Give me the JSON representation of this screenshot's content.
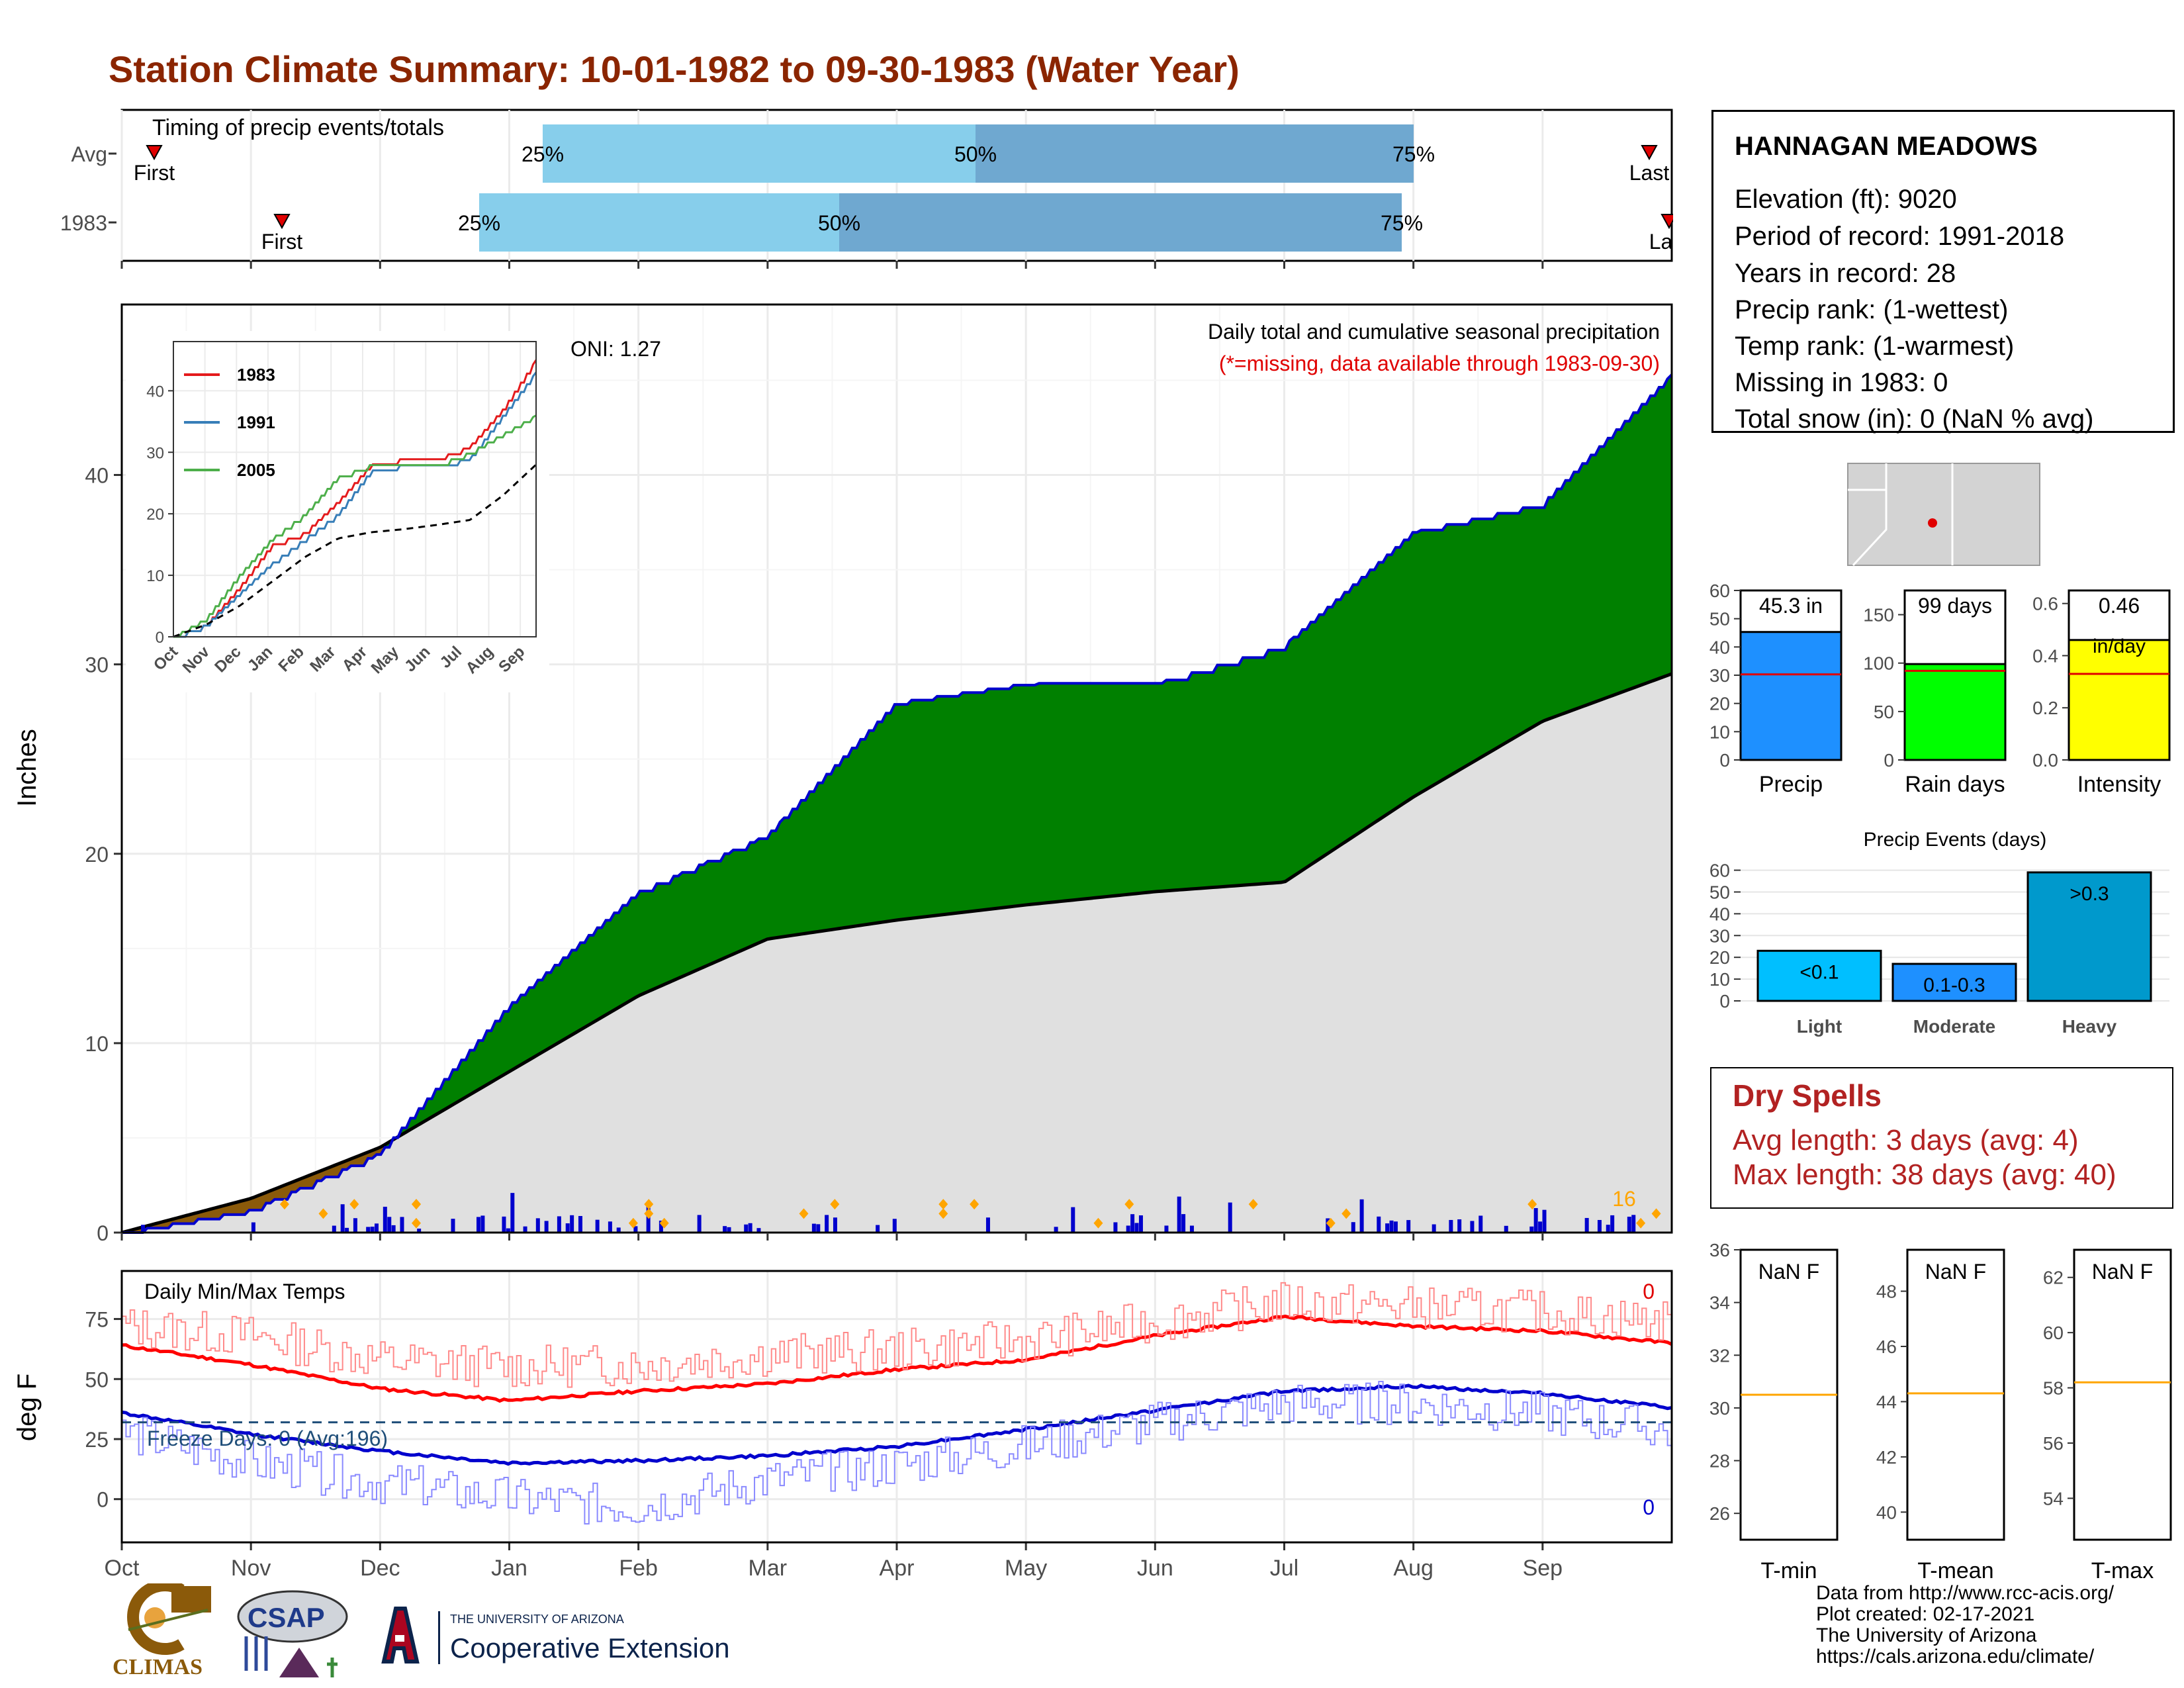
{
  "title": "Station Climate Summary: 10-01-1982 to 09-30-1983 (Water Year)",
  "timing_panel": {
    "label": "Timing of precip events/totals",
    "rows": [
      {
        "name": "Avg",
        "first_label": "First",
        "last_label": "Last",
        "p25": "25%",
        "p50": "50%",
        "p75": "75%"
      },
      {
        "name": "1983",
        "first_label": "First",
        "last_label": "Last",
        "p25": "25%",
        "p50": "50%",
        "p75": "75%"
      }
    ]
  },
  "station": {
    "name": "HANNAGAN MEADOWS",
    "lines": [
      "Elevation (ft): 9020",
      "Period of record: 1991-2018",
      "Years in record: 28",
      "Precip rank:  (1-wettest)",
      "Temp rank:  (1-warmest)",
      "Missing in 1983: 0",
      "Total snow (in): 0 (NaN % avg)"
    ]
  },
  "main_plot": {
    "ylabel": "Inches",
    "note1": "Daily total and cumulative seasonal precipitation",
    "note2": "(*=missing, data available through 1983-09-30)",
    "oni": "ONI: 1.27",
    "count_label": "16",
    "months": [
      "Oct",
      "Nov",
      "Dec",
      "Jan",
      "Feb",
      "Mar",
      "Apr",
      "May",
      "Jun",
      "Jul",
      "Aug",
      "Sep"
    ],
    "yticks": [
      "0",
      "10",
      "20",
      "30",
      "40"
    ]
  },
  "chart_data": [
    {
      "type": "area",
      "title": "Daily total and cumulative seasonal precipitation",
      "ylabel": "Inches",
      "ylim": [
        0,
        49
      ],
      "x": [
        "Oct",
        "Nov",
        "Dec",
        "Jan",
        "Feb",
        "Mar",
        "Apr",
        "May",
        "Jun",
        "Jul",
        "Aug",
        "Sep",
        "Sep 30"
      ],
      "series": [
        {
          "name": "1983",
          "values": [
            0,
            1.2,
            4.2,
            12.0,
            18.0,
            21.0,
            28.0,
            29.0,
            29.0,
            31.0,
            37.0,
            38.5,
            45.3
          ]
        },
        {
          "name": "Avg",
          "values": [
            0,
            1.8,
            4.5,
            8.5,
            12.5,
            15.5,
            16.5,
            17.3,
            18.0,
            18.5,
            23.0,
            27.0,
            29.5
          ]
        }
      ]
    },
    {
      "type": "line",
      "title": "",
      "ylim": [
        0,
        48
      ],
      "x": [
        "Oct",
        "Nov",
        "Dec",
        "Jan",
        "Feb",
        "Mar",
        "Apr",
        "May",
        "Jun",
        "Jul",
        "Aug",
        "Sep"
      ],
      "series": [
        {
          "name": "1983",
          "values": [
            0,
            2,
            8,
            15,
            17,
            22,
            28,
            29,
            29,
            31,
            37,
            45
          ]
        },
        {
          "name": "1991",
          "values": [
            0,
            2,
            7,
            12,
            16,
            20,
            27,
            28,
            28,
            29,
            36,
            43
          ]
        },
        {
          "name": "2005",
          "values": [
            0,
            3,
            10,
            16,
            20,
            26,
            28,
            28,
            28,
            30,
            33,
            36
          ]
        },
        {
          "name": "Avg",
          "values": [
            0,
            2,
            5,
            9,
            13,
            16,
            17,
            17.5,
            18.2,
            19,
            23,
            28
          ]
        }
      ]
    },
    {
      "type": "bar",
      "title": "",
      "categories": [
        "Precip",
        "Rain days",
        "Intensity"
      ],
      "values": [
        45.3,
        99,
        0.46
      ],
      "labels": [
        "45.3 in",
        "99 days",
        "0.46 in/day"
      ],
      "averages": [
        30.3,
        92,
        0.33
      ],
      "ylims": [
        [
          0,
          60
        ],
        [
          0,
          175
        ],
        [
          0,
          0.65
        ]
      ]
    },
    {
      "type": "bar",
      "title": "Precip Events (days)",
      "categories": [
        "Light",
        "Moderate",
        "Heavy"
      ],
      "values": [
        23,
        17,
        59
      ],
      "labels": [
        "<0.1",
        "0.1-0.3",
        ">0.3"
      ],
      "ylim": [
        0,
        62
      ]
    },
    {
      "type": "line",
      "title": "Daily Min/Max Temps",
      "ylabel": "deg F",
      "ylim": [
        -18,
        95
      ],
      "x": [
        "Oct",
        "Nov",
        "Dec",
        "Jan",
        "Feb",
        "Mar",
        "Apr",
        "May",
        "Jun",
        "Jul",
        "Aug",
        "Sep",
        "Sep 30"
      ],
      "series": [
        {
          "name": "Avg Max",
          "values": [
            64,
            56,
            46,
            41,
            45,
            48,
            54,
            58,
            68,
            76,
            72,
            70,
            65
          ]
        },
        {
          "name": "Avg Min",
          "values": [
            36,
            27,
            20,
            15,
            16,
            18,
            22,
            29,
            37,
            45,
            47,
            44,
            38
          ]
        },
        {
          "name": "Daily Max",
          "values": [
            72,
            68,
            58,
            55,
            56,
            60,
            62,
            66,
            74,
            82,
            80,
            78,
            74
          ]
        },
        {
          "name": "Daily Min",
          "values": [
            28,
            15,
            7,
            0,
            -3,
            8,
            14,
            22,
            32,
            40,
            40,
            36,
            28
          ]
        }
      ]
    }
  ],
  "temp_panel": {
    "label": "Daily Min/Max Temps",
    "ylabel": "deg F",
    "freeze": "Freeze Days: 0 (Avg:196)",
    "max_count": "0",
    "min_count": "0",
    "yticks": [
      "0",
      "25",
      "50",
      "75"
    ]
  },
  "summary_bars": [
    {
      "axis_label": "Precip",
      "value_label": "45.3 in",
      "color": "#1E90FF",
      "yticks": [
        "0",
        "10",
        "20",
        "30",
        "40",
        "50",
        "60"
      ]
    },
    {
      "axis_label": "Rain days",
      "value_label": "99 days",
      "color": "#00FF00",
      "yticks": [
        "0",
        "50",
        "100",
        "150"
      ]
    },
    {
      "axis_label": "Intensity",
      "value_label": "0.46",
      "unit_label": "in/day",
      "color": "#FFFF00",
      "yticks": [
        "0.0",
        "0.2",
        "0.4",
        "0.6"
      ]
    }
  ],
  "events": {
    "title": "Precip Events (days)",
    "yticks": [
      "0",
      "10",
      "20",
      "30",
      "40",
      "50",
      "60"
    ],
    "bars": [
      {
        "category": "Light",
        "label": "<0.1"
      },
      {
        "category": "Moderate",
        "label": "0.1-0.3"
      },
      {
        "category": "Heavy",
        "label": ">0.3"
      }
    ]
  },
  "dry_spells": {
    "title": "Dry Spells",
    "avg": "Avg length: 3 days (avg: 4)",
    "max": "Max length: 38 days (avg: 40)"
  },
  "temp_boxes": [
    {
      "axis_label": "T-min",
      "value": "NaN F",
      "yticks": [
        "26",
        "28",
        "30",
        "32",
        "34",
        "36"
      ]
    },
    {
      "axis_label": "T-mean",
      "value": "NaN F",
      "yticks": [
        "40",
        "42",
        "44",
        "46",
        "48"
      ]
    },
    {
      "axis_label": "T-max",
      "value": "NaN F",
      "yticks": [
        "54",
        "56",
        "58",
        "60",
        "62"
      ]
    }
  ],
  "inset_months": [
    "Oct",
    "Nov",
    "Dec",
    "Jan",
    "Feb",
    "Mar",
    "Apr",
    "May",
    "Jun",
    "Jul",
    "Aug",
    "Sep"
  ],
  "inset_yticks": [
    "0",
    "10",
    "20",
    "30",
    "40"
  ],
  "footer": [
    "Data from http://www.rcc-acis.org/",
    "Plot created: 02-17-2021",
    "The University of Arizona",
    "https://cals.arizona.edu/climate/"
  ],
  "logos": {
    "climas": "CLIMAS",
    "csap": "CSAP",
    "ua_small": "THE UNIVERSITY OF ARIZONA",
    "ua_big": "Cooperative Extension"
  },
  "colors": {
    "title": "#8B2500",
    "precip_above": "#008000",
    "precip_below": "#8B5A0A",
    "avg_fill": "#E0E0E0",
    "line_blue": "#0000CD",
    "bar_light": "#87CEEB",
    "bar_dark": "#6FA8D0",
    "dry": "#B22222"
  }
}
